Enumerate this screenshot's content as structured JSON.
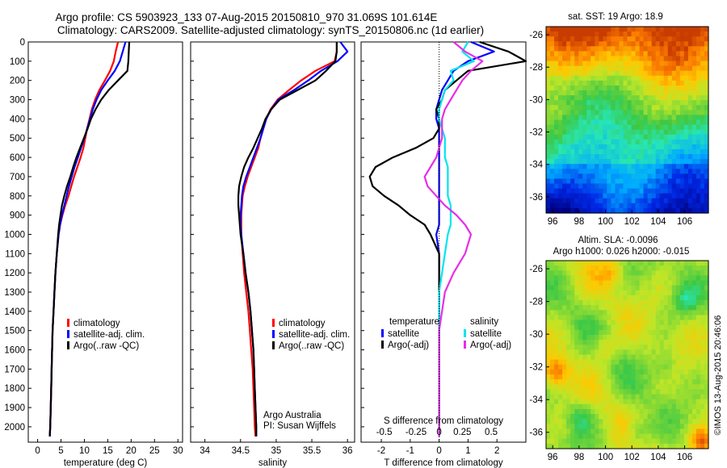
{
  "header": {
    "line1": "Argo profile: CS 5903923_133 07-Aug-2015 20150810_970 31.069S 101.614E",
    "line2": "Climatology: CARS2009. Satellite-adjusted climatology: synTS_20150806.nc (1d earlier)"
  },
  "credit": "©IMOS 13-Aug-2015 20:46:06",
  "colors": {
    "climatology": "#ff0000",
    "satellite": "#0000ff",
    "argo": "#000000",
    "salinity_satellite": "#00e5ee",
    "salinity_argo": "#e62ee6"
  },
  "chart_data": [
    {
      "id": "temperature",
      "type": "line",
      "xlabel": "temperature (deg C)",
      "ylabel": "",
      "xlim": [
        -2,
        31
      ],
      "ylim": [
        2080,
        0
      ],
      "xticks": [
        0,
        5,
        10,
        15,
        20,
        25,
        30
      ],
      "yticks": [
        0,
        100,
        200,
        300,
        400,
        500,
        600,
        700,
        800,
        900,
        1000,
        1100,
        1200,
        1300,
        1400,
        1500,
        1600,
        1700,
        1800,
        1900,
        2000
      ],
      "y": [
        0,
        50,
        100,
        150,
        200,
        250,
        300,
        350,
        400,
        450,
        500,
        550,
        600,
        650,
        700,
        750,
        800,
        850,
        900,
        950,
        1000,
        1100,
        1200,
        1300,
        1400,
        1500,
        1600,
        1700,
        1800,
        1900,
        2000,
        2050
      ],
      "series": [
        {
          "name": "climatology",
          "color": "#ff0000",
          "x": [
            17.2,
            16.7,
            16.3,
            15.5,
            14.4,
            13.2,
            12.3,
            11.6,
            11.1,
            10.6,
            10.2,
            9.8,
            9.2,
            8.5,
            7.8,
            7.2,
            6.6,
            5.9,
            5.3,
            4.8,
            4.5,
            4.1,
            3.8,
            3.6,
            3.4,
            3.2,
            3.1,
            3.0,
            2.9,
            2.8,
            2.7,
            2.6
          ]
        },
        {
          "name": "satellite-adj. clim.",
          "color": "#0000ff",
          "x": [
            18.8,
            18.2,
            17.6,
            16.5,
            15.0,
            13.6,
            12.6,
            11.8,
            11.2,
            10.6,
            10.0,
            9.3,
            8.6,
            7.9,
            7.3,
            6.7,
            6.2,
            5.7,
            5.2,
            4.8,
            4.5,
            4.1,
            3.8,
            3.6,
            3.4,
            3.2,
            3.1,
            3.0,
            2.9,
            2.8,
            2.7,
            2.6
          ]
        },
        {
          "name": "Argo(..raw -QC)",
          "color": "#000000",
          "x": [
            19.6,
            19.5,
            19.4,
            19.2,
            17.2,
            15.2,
            13.6,
            12.4,
            11.4,
            10.7,
            9.9,
            9.1,
            8.3,
            7.6,
            7.0,
            6.3,
            5.7,
            5.2,
            4.9,
            4.6,
            4.4,
            4.1,
            3.8,
            3.6,
            3.4,
            3.2,
            3.1,
            3.0,
            2.9,
            2.8,
            2.7,
            2.6
          ]
        }
      ]
    },
    {
      "id": "salinity",
      "type": "line",
      "xlabel": "salinity",
      "ylabel": "",
      "xlim": [
        33.8,
        36.1
      ],
      "ylim": [
        2080,
        0
      ],
      "xticks": [
        34,
        34.5,
        35,
        35.5,
        36
      ],
      "y": [
        0,
        50,
        100,
        150,
        200,
        250,
        300,
        350,
        400,
        450,
        500,
        550,
        600,
        650,
        700,
        750,
        800,
        850,
        900,
        950,
        1000,
        1100,
        1200,
        1300,
        1400,
        1500,
        1600,
        1700,
        1800,
        1900,
        2000,
        2050
      ],
      "series": [
        {
          "name": "climatology",
          "color": "#ff0000",
          "x": [
            35.85,
            35.85,
            35.82,
            35.55,
            35.35,
            35.18,
            35.02,
            34.92,
            34.86,
            34.82,
            34.78,
            34.75,
            34.7,
            34.65,
            34.6,
            34.56,
            34.53,
            34.52,
            34.51,
            34.51,
            34.51,
            34.53,
            34.55,
            34.58,
            34.61,
            34.63,
            34.65,
            34.67,
            34.68,
            34.69,
            34.7,
            34.71
          ]
        },
        {
          "name": "satellite-adj. clim.",
          "color": "#0000ff",
          "x": [
            35.9,
            36.0,
            35.86,
            35.63,
            35.45,
            35.25,
            35.03,
            34.93,
            34.86,
            34.82,
            34.78,
            34.73,
            34.68,
            34.63,
            34.58,
            34.54,
            34.52,
            34.51,
            34.5,
            34.5,
            34.51,
            34.54,
            34.57,
            34.61,
            34.64,
            34.66,
            34.68,
            34.69,
            34.7,
            34.71,
            34.72,
            34.72
          ]
        },
        {
          "name": "Argo(..raw -QC)",
          "color": "#000000",
          "x": [
            35.85,
            35.85,
            35.83,
            35.7,
            35.55,
            35.3,
            35.05,
            34.93,
            34.85,
            34.8,
            34.74,
            34.68,
            34.61,
            34.55,
            34.51,
            34.48,
            34.47,
            34.47,
            34.48,
            34.49,
            34.5,
            34.54,
            34.57,
            34.61,
            34.64,
            34.66,
            34.68,
            34.69,
            34.7,
            34.71,
            34.72,
            34.72
          ]
        }
      ],
      "annotations": [
        "Argo Australia",
        "PI: Susan Wijffels"
      ]
    },
    {
      "id": "difference",
      "type": "line",
      "xlabel": "T difference from climatology",
      "ylabel": "",
      "xlim": [
        -2.7,
        3.0
      ],
      "ylim": [
        2080,
        0
      ],
      "xticks": [
        -2,
        -1,
        0,
        1,
        2
      ],
      "secondary_axis": {
        "label": "S difference from climatology",
        "ticks": [
          -0.5,
          -0.25,
          0,
          0.25,
          0.5
        ]
      },
      "legend_headers": [
        "temperature",
        "salinity"
      ],
      "y": [
        0,
        50,
        100,
        150,
        200,
        250,
        300,
        350,
        400,
        450,
        500,
        550,
        600,
        650,
        700,
        750,
        800,
        850,
        900,
        950,
        1000,
        1100,
        1200,
        1300,
        1400,
        1500,
        1600,
        1700,
        1800,
        1900,
        2000,
        2050
      ],
      "series": [
        {
          "name": "satellite",
          "group": "temperature",
          "color": "#0000ff",
          "x": [
            1.1,
            1.9,
            1.0,
            0.5,
            0.3,
            0.1,
            0,
            -0.1,
            -0.1,
            0,
            0,
            0,
            0,
            0,
            0,
            0,
            0,
            0,
            0,
            0,
            -0.1,
            0,
            0,
            0,
            0,
            0,
            0,
            0,
            0,
            0,
            0,
            0
          ]
        },
        {
          "name": "Argo(-adj)",
          "group": "temperature",
          "color": "#000000",
          "x": [
            1.4,
            2.4,
            3.0,
            1.0,
            0.6,
            0.2,
            0.1,
            -0.1,
            0,
            0,
            -0.2,
            -0.8,
            -1.6,
            -2.2,
            -2.4,
            -2.3,
            -1.9,
            -1.4,
            -1.0,
            -0.5,
            -0.3,
            0,
            0,
            0,
            0,
            0,
            0,
            0,
            0,
            0,
            0,
            0
          ]
        },
        {
          "name": "satellite",
          "group": "salinity",
          "color": "#00e5ee",
          "x": [
            1.0,
            0.8,
            1.2,
            0.4,
            0.5,
            0.2,
            0.1,
            0,
            0,
            0.1,
            0.2,
            0.2,
            0.2,
            0.3,
            0.3,
            0.3,
            0.3,
            0.4,
            0.4,
            0.4,
            0.3,
            0.2,
            0.1,
            0,
            0,
            0,
            0,
            0,
            0,
            0,
            0,
            0
          ]
        },
        {
          "name": "Argo(-adj)",
          "group": "salinity",
          "color": "#e62ee6",
          "x": [
            0.5,
            0.9,
            1.5,
            1.1,
            0.8,
            0.6,
            0.4,
            0.2,
            0.1,
            0.1,
            0.1,
            0,
            -0.1,
            -0.3,
            -0.5,
            -0.4,
            -0.1,
            0.2,
            0.6,
            0.9,
            1.1,
            0.9,
            0.5,
            0.2,
            0.1,
            0,
            0,
            0,
            0,
            0,
            0,
            0
          ]
        }
      ]
    },
    {
      "id": "sst-map",
      "type": "heatmap",
      "title": "sat. SST: 19 Argo: 18.9",
      "xlim": [
        95.5,
        107.8
      ],
      "ylim": [
        -37,
        -25.5
      ],
      "xticks": [
        96,
        98,
        100,
        102,
        104,
        106
      ],
      "yticks": [
        -26,
        -28,
        -30,
        -32,
        -34,
        -36
      ]
    },
    {
      "id": "sla-map",
      "type": "heatmap",
      "title": "Altim. SLA: -0.0096",
      "subtitle": "Argo h1000: 0.026 h2000: -0.015",
      "xlim": [
        95.5,
        107.8
      ],
      "ylim": [
        -37,
        -25.5
      ],
      "xticks": [
        96,
        98,
        100,
        102,
        104,
        106
      ],
      "yticks": [
        -26,
        -28,
        -30,
        -32,
        -34,
        -36
      ]
    }
  ]
}
